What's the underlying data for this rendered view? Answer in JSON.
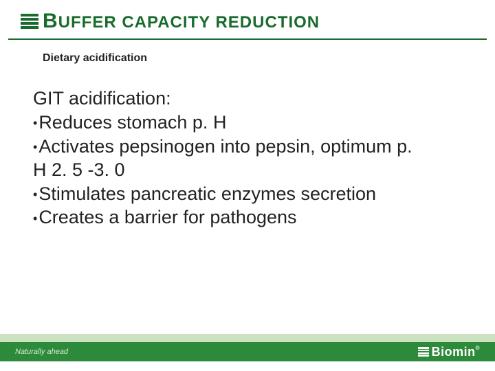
{
  "header": {
    "title_big": "B",
    "title_rest": "UFFER CAPACITY REDUCTION"
  },
  "subtitle": "Dietary acidification",
  "content": {
    "heading": "GIT acidification:",
    "bullets": [
      "Reduces stomach p. H",
      "Activates pepsinogen into pepsin, optimum p. H 2. 5 -3. 0",
      "Stimulates pancreatic enzymes secretion",
      "Creates a barrier for pathogens"
    ]
  },
  "footer": {
    "tagline": "Naturally ahead",
    "brand": "Biomin",
    "brand_mark": "®"
  },
  "colors": {
    "brand_green": "#1a6b2e",
    "band_light": "#cce3c2",
    "band_dark": "#2c8a3a"
  }
}
